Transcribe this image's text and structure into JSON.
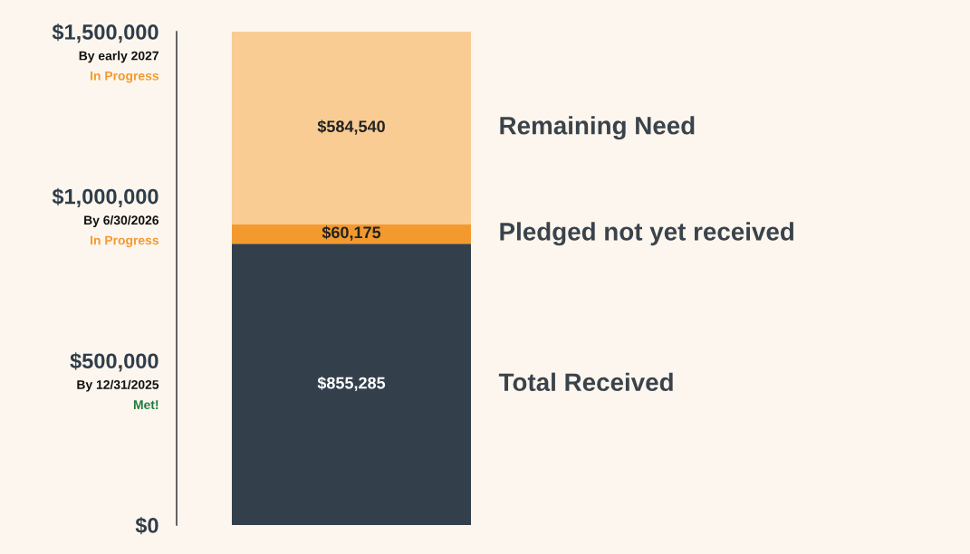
{
  "chart_data": {
    "type": "bar",
    "stacked": true,
    "categories": [
      null
    ],
    "series": [
      {
        "name": "Total Received",
        "color": "#333f4b",
        "values": [
          855285
        ],
        "value_labels": [
          "$855,285"
        ]
      },
      {
        "name": "Pledged not yet received",
        "color": "#f39a2e",
        "values": [
          60175
        ],
        "value_labels": [
          "$60,175"
        ]
      },
      {
        "name": "Remaining Need",
        "color": "#f9cc94",
        "values": [
          584540
        ],
        "value_labels": [
          "$584,540"
        ]
      }
    ],
    "ylim": [
      0,
      1500000
    ],
    "yticks": [
      {
        "value": 0,
        "label": "$0"
      },
      {
        "value": 500000,
        "label": "$500,000"
      },
      {
        "value": 1000000,
        "label": "$1,000,000"
      },
      {
        "value": 1500000,
        "label": "$1,500,000"
      }
    ],
    "annotations": [
      "By 12/31/2025",
      "Met!",
      "By 6/30/2026",
      "In Progress",
      "By early 2027",
      "In Progress"
    ],
    "grid": false,
    "legend": false
  }
}
